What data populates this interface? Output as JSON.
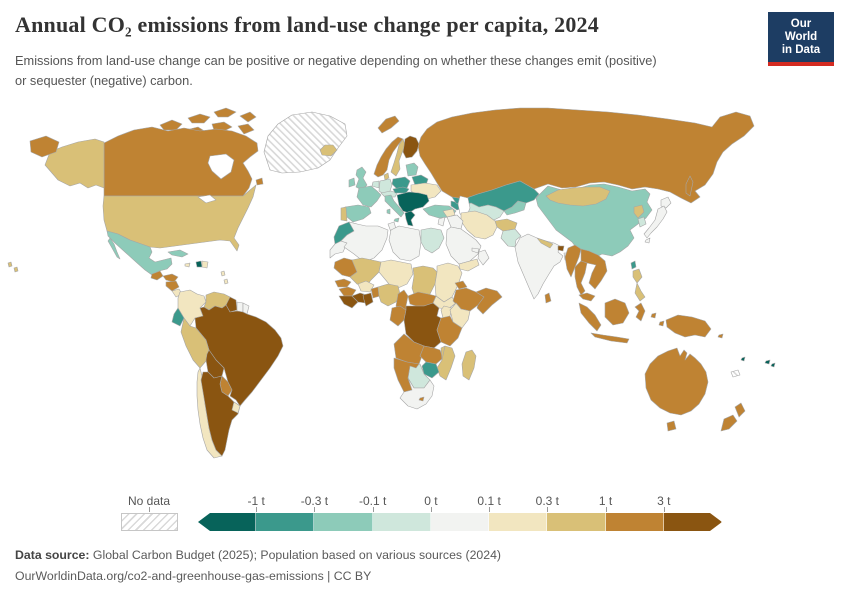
{
  "header": {
    "title": "Annual CO₂ emissions from land-use change per capita, 2024",
    "subtitle_line1": "Emissions from land-use change can be positive or negative depending on whether these changes emit (positive)",
    "subtitle_line2": "or sequester (negative) carbon.",
    "logo": {
      "line1": "Our World",
      "line2": "in Data",
      "bg_color": "#1d3d63",
      "accent_color": "#d42b21"
    }
  },
  "legend": {
    "no_data_label": "No data",
    "ticks": [
      "-1 t",
      "-0.3 t",
      "-0.1 t",
      "0 t",
      "0.1 t",
      "0.3 t",
      "1 t",
      "3 t"
    ]
  },
  "footer": {
    "source_label": "Data source:",
    "source_text": " Global Carbon Budget (2025); Population based on various sources (2024)",
    "license_text": "OurWorldinData.org/co2-and-greenhouse-gas-emissions | CC BY"
  },
  "chart_data": {
    "type": "choropleth",
    "title": "Annual CO₂ emissions from land-use change per capita, 2024",
    "unit": "t CO₂ per person",
    "legend_position": "bottom",
    "bins": [
      {
        "range": "< -1 t",
        "color": "#07635a"
      },
      {
        "range": "-1 to -0.3 t",
        "color": "#3b998c"
      },
      {
        "range": "-0.3 to -0.1 t",
        "color": "#8dcbb9"
      },
      {
        "range": "-0.1 to 0 t",
        "color": "#cfe7dc"
      },
      {
        "range": "0 to 0.1 t",
        "color": "#f2f3f1"
      },
      {
        "range": "0.1 to 0.3 t",
        "color": "#f2e6c0"
      },
      {
        "range": "0.3 to 1 t",
        "color": "#d9c077"
      },
      {
        "range": "1 to 3 t",
        "color": "#bf8333"
      },
      {
        "range": "> 3 t",
        "color": "#8a5511"
      }
    ],
    "no_data": {
      "label": "No data",
      "pattern": "diagonal-hatch"
    },
    "countries": {
      "greenland": "nd",
      "canada": 7,
      "united-states": 6,
      "mexico": 2,
      "guatemala": 7,
      "honduras": 7,
      "nicaragua": 7,
      "costa-rica": 5,
      "panama": 7,
      "cuba": 2,
      "jamaica": 5,
      "haiti": 0,
      "dominican-republic": 5,
      "lesser-antilles": 5,
      "colombia": 5,
      "venezuela": 6,
      "guyana": 8,
      "suriname": 4,
      "french-guiana": 4,
      "ecuador": 1,
      "peru": 6,
      "brazil": 8,
      "bolivia": 8,
      "paraguay": 7,
      "chile": 5,
      "argentina": 8,
      "uruguay": 5,
      "iceland": 6,
      "norway": 7,
      "sweden": 6,
      "finland": 8,
      "denmark": 6,
      "united-kingdom": 2,
      "ireland": 2,
      "france": 2,
      "spain": 2,
      "portugal": 6,
      "germany": 3,
      "benelux": 3,
      "italy": 2,
      "switzerland-austria": 3,
      "czechia-slovakia": 1,
      "poland": 1,
      "baltic-states": 2,
      "belarus": 1,
      "ukraine": 5,
      "balkans": 0,
      "greece": 0,
      "turkey": 2,
      "caucasus": 1,
      "russia": 7,
      "kazakhstan": 1,
      "uzbekistan-turkmenistan": 3,
      "kyrgyzstan-tajikistan": 2,
      "morocco": 1,
      "western-sahara": 4,
      "algeria": 4,
      "tunisia": 4,
      "libya": 4,
      "egypt": 3,
      "mauritania": 7,
      "mali": 6,
      "burkina-faso": 5,
      "niger": 5,
      "chad": 6,
      "sudan": 5,
      "south-sudan": 5,
      "eritrea": 7,
      "ethiopia": 7,
      "somalia": 7,
      "senegal": 7,
      "guinea": 7,
      "sierra-leone-liberia": 8,
      "cote-divoire": 8,
      "ghana": 8,
      "togo-benin": 7,
      "nigeria": 6,
      "cameroon": 7,
      "central-african-republic": 7,
      "congo-gabon": 7,
      "dr-congo": 8,
      "uganda": 5,
      "kenya": 5,
      "tanzania": 7,
      "angola": 7,
      "zambia": 7,
      "malawi": 6,
      "mozambique": 6,
      "zimbabwe": 1,
      "botswana": 3,
      "namibia": 7,
      "south-africa": 4,
      "lesotho": 7,
      "madagascar": 6,
      "syria": 5,
      "iraq": 4,
      "jordan-israel": 4,
      "saudi-arabia": 4,
      "yemen": 5,
      "oman": 4,
      "uae": 4,
      "iran": 5,
      "afghanistan": 6,
      "pakistan": 3,
      "india": 4,
      "nepal": 6,
      "bhutan": 8,
      "bangladesh": 4,
      "sri-lanka": 7,
      "myanmar": 7,
      "thailand": 7,
      "laos-vietnam-cambodia": 7,
      "malaysia": 7,
      "indonesia": 7,
      "philippines": 6,
      "taiwan": 1,
      "china": 2,
      "mongolia": 6,
      "north-korea": 6,
      "south-korea": 3,
      "japan": 4,
      "australia": 7,
      "new-zealand": 7,
      "papua-new-guinea": 7,
      "solomon-islands": 7,
      "vanuatu": 0,
      "fiji": 0,
      "new-caledonia": "nd"
    }
  }
}
